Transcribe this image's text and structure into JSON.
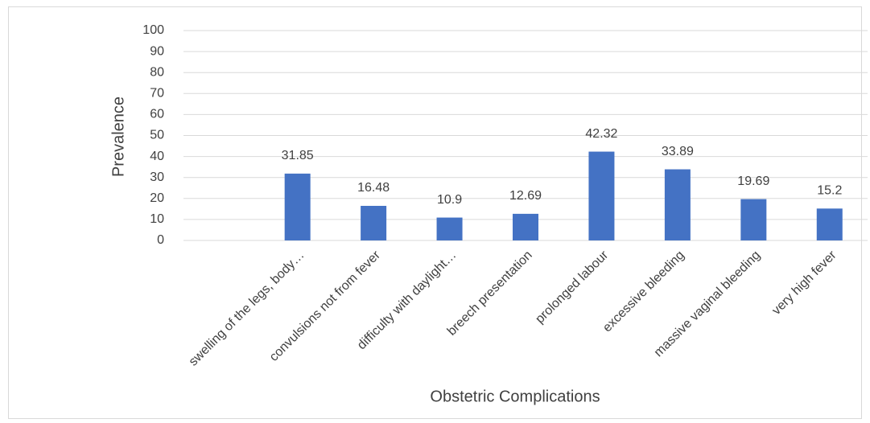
{
  "chart_data": {
    "type": "bar",
    "x_label": "Obstetric Complications",
    "y_label": "Prevalence",
    "categories": [
      null,
      "swelling of the legs, body…",
      "convulsions not from fever",
      "difficulty with daylight…",
      "breech presentation",
      "prolonged labour",
      "excessive bleeding",
      "massive vaginal bleeding",
      "very high fever"
    ],
    "values": [
      null,
      31.85,
      16.48,
      10.9,
      12.69,
      42.32,
      33.89,
      19.69,
      15.2
    ],
    "color": "#4472c4",
    "ylim": [
      0,
      100
    ],
    "yticks": [
      0,
      10,
      20,
      30,
      40,
      50,
      60,
      70,
      80,
      90,
      100
    ],
    "grid": true
  }
}
